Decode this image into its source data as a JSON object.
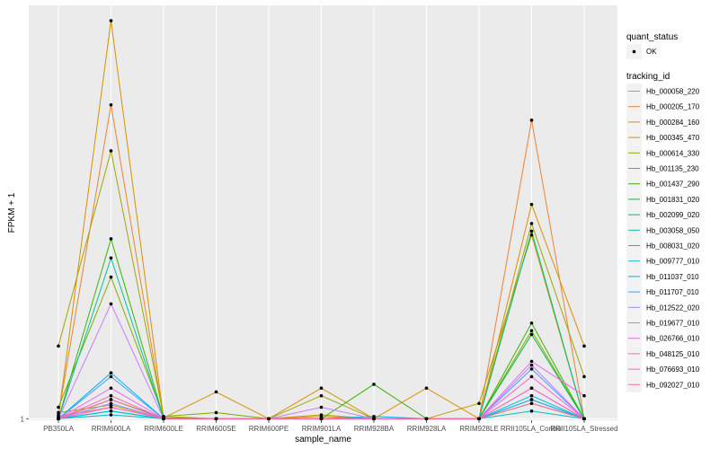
{
  "chart_data": {
    "type": "line",
    "xlabel": "sample_name",
    "ylabel": "FPKM + 1",
    "y_tick_labels": [
      "1"
    ],
    "y_tick_values": [
      1
    ],
    "ylim": [
      0.8,
      55
    ],
    "y_scale": "linear",
    "categories": [
      "PB350LA",
      "RRIM600LA",
      "RRIM600LE",
      "RRIM600SE",
      "RRIM600PE",
      "RRIM901LA",
      "RRIM928BA",
      "RRIM928LA",
      "RRIM928LE",
      "RRII105LA_Control",
      "RRII105LA_Stressed"
    ],
    "legend_quant": {
      "title": "quant_status",
      "label": "OK"
    },
    "legend_tracking": {
      "title": "tracking_id"
    },
    "series": [
      {
        "name": "Hb_000058_220",
        "color": "#F8766D",
        "values": [
          1.3,
          2.5,
          1.1,
          1.0,
          1.0,
          1.0,
          1.0,
          1.0,
          1.0,
          3.5,
          1.0
        ]
      },
      {
        "name": "Hb_000205_170",
        "color": "#EA8331",
        "values": [
          1.5,
          42.0,
          1.1,
          1.0,
          1.0,
          1.3,
          1.0,
          1.0,
          1.0,
          40.0,
          1.0
        ]
      },
      {
        "name": "Hb_000284_160",
        "color": "#D89000",
        "values": [
          1.2,
          53.0,
          1.1,
          4.5,
          1.0,
          5.0,
          1.0,
          5.0,
          1.0,
          29.0,
          10.5
        ]
      },
      {
        "name": "Hb_000345_470",
        "color": "#C09B00",
        "values": [
          1.8,
          2.8,
          1.1,
          1.0,
          1.0,
          1.5,
          1.0,
          1.0,
          3.0,
          25.0,
          1.0
        ]
      },
      {
        "name": "Hb_000614_330",
        "color": "#A3A500",
        "values": [
          10.5,
          36.0,
          1.3,
          1.0,
          1.0,
          4.0,
          1.0,
          1.0,
          1.0,
          26.5,
          6.5
        ]
      },
      {
        "name": "Hb_001135_230",
        "color": "#7CAE00",
        "values": [
          2.5,
          19.5,
          1.3,
          1.8,
          1.0,
          1.0,
          1.0,
          1.0,
          1.0,
          12.5,
          1.0
        ]
      },
      {
        "name": "Hb_001437_290",
        "color": "#39B600",
        "values": [
          1.0,
          24.5,
          1.1,
          1.0,
          1.0,
          1.0,
          5.5,
          1.0,
          1.0,
          13.5,
          1.0
        ]
      },
      {
        "name": "Hb_001831_020",
        "color": "#00BB4E",
        "values": [
          1.0,
          3.5,
          1.1,
          1.0,
          1.0,
          1.0,
          1.0,
          1.0,
          1.0,
          12.0,
          1.0
        ]
      },
      {
        "name": "Hb_002099_020",
        "color": "#00BF7D",
        "values": [
          1.0,
          2.0,
          1.0,
          1.0,
          1.0,
          1.0,
          1.0,
          1.0,
          1.0,
          25.5,
          1.0
        ]
      },
      {
        "name": "Hb_003058_050",
        "color": "#00C1A3",
        "values": [
          1.0,
          22.0,
          1.0,
          1.0,
          1.0,
          1.0,
          1.0,
          1.0,
          1.0,
          3.0,
          1.0
        ]
      },
      {
        "name": "Hb_008031_020",
        "color": "#00BFC4",
        "values": [
          1.0,
          2.0,
          1.0,
          1.0,
          1.0,
          1.0,
          1.0,
          1.0,
          1.0,
          2.0,
          1.0
        ]
      },
      {
        "name": "Hb_009777_010",
        "color": "#00BAE0",
        "values": [
          1.0,
          1.5,
          1.0,
          1.0,
          1.0,
          1.0,
          1.0,
          1.0,
          1.0,
          4.0,
          1.0
        ]
      },
      {
        "name": "Hb_011037_010",
        "color": "#00B0F6",
        "values": [
          1.0,
          7.0,
          1.0,
          1.0,
          1.0,
          1.0,
          1.3,
          1.0,
          1.0,
          3.5,
          1.0
        ]
      },
      {
        "name": "Hb_011707_010",
        "color": "#35A2FF",
        "values": [
          1.0,
          6.5,
          1.0,
          1.0,
          1.0,
          1.0,
          1.0,
          1.0,
          1.0,
          7.5,
          1.0
        ]
      },
      {
        "name": "Hb_012522_020",
        "color": "#9590FF",
        "values": [
          1.0,
          3.0,
          1.0,
          1.0,
          1.0,
          1.0,
          1.0,
          1.0,
          1.0,
          5.0,
          1.0
        ]
      },
      {
        "name": "Hb_019677_010",
        "color": "#C77CFF",
        "values": [
          1.0,
          16.0,
          1.0,
          1.0,
          1.0,
          2.5,
          1.0,
          1.0,
          1.0,
          8.0,
          1.0
        ]
      },
      {
        "name": "Hb_026766_010",
        "color": "#E76BF3",
        "values": [
          1.0,
          5.0,
          1.0,
          1.0,
          1.0,
          1.0,
          1.0,
          1.0,
          1.0,
          8.5,
          4.0
        ]
      },
      {
        "name": "Hb_048125_010",
        "color": "#FA62DB",
        "values": [
          1.0,
          2.5,
          1.0,
          1.0,
          1.0,
          1.0,
          1.0,
          1.0,
          1.0,
          6.5,
          1.0
        ]
      },
      {
        "name": "Hb_076693_010",
        "color": "#FF62BC",
        "values": [
          1.0,
          4.0,
          1.0,
          1.0,
          1.0,
          1.0,
          1.0,
          1.0,
          1.0,
          5.0,
          1.0
        ]
      },
      {
        "name": "Hb_092027_010",
        "color": "#FF6C91",
        "values": [
          1.0,
          3.5,
          1.0,
          1.0,
          1.0,
          1.0,
          1.0,
          1.0,
          1.0,
          3.0,
          1.0
        ]
      }
    ]
  }
}
